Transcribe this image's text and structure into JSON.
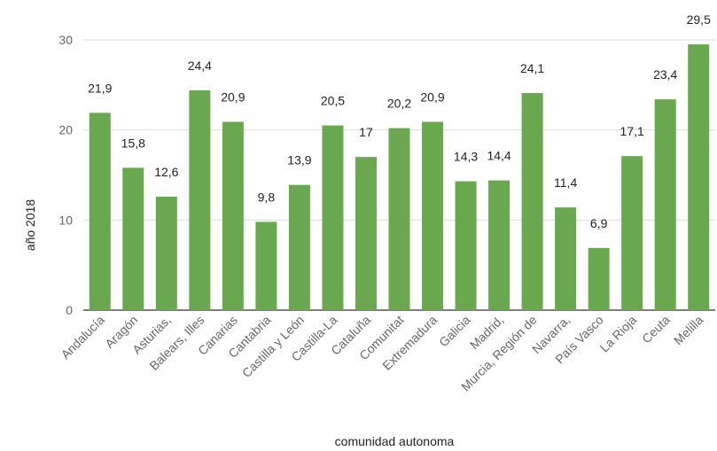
{
  "chart_data": {
    "type": "bar",
    "title": "",
    "xlabel": "comunidad autonoma",
    "ylabel": "año 2018",
    "ylim": [
      0,
      30
    ],
    "yticks": [
      0,
      10,
      20,
      30
    ],
    "grid": true,
    "bar_color": "#6aa84f",
    "gridline_color": "#dddddd",
    "categories": [
      "Andalucía",
      "Aragón",
      "Asturias,",
      "Balears, Illes",
      "Canarias",
      "Cantabria",
      "Castilla y León",
      "Castilla-La",
      "Cataluña",
      "Comunitat",
      "Extremadura",
      "Galicia",
      "Madrid,",
      "Murcia, Región de",
      "Navarra,",
      "País Vasco",
      "La Rioja",
      "Ceuta",
      "Melilla"
    ],
    "values": [
      21.9,
      15.8,
      12.6,
      24.4,
      20.9,
      9.8,
      13.9,
      20.5,
      17,
      20.2,
      20.9,
      14.3,
      14.4,
      24.1,
      11.4,
      6.9,
      17.1,
      23.4,
      29.5
    ],
    "data_labels": [
      "21,9",
      "15,8",
      "12,6",
      "24,4",
      "20,9",
      "9,8",
      "13,9",
      "20,5",
      "17",
      "20,2",
      "20,9",
      "14,3",
      "14,4",
      "24,1",
      "11,4",
      "6,9",
      "17,1",
      "23,4",
      "29,5"
    ]
  }
}
